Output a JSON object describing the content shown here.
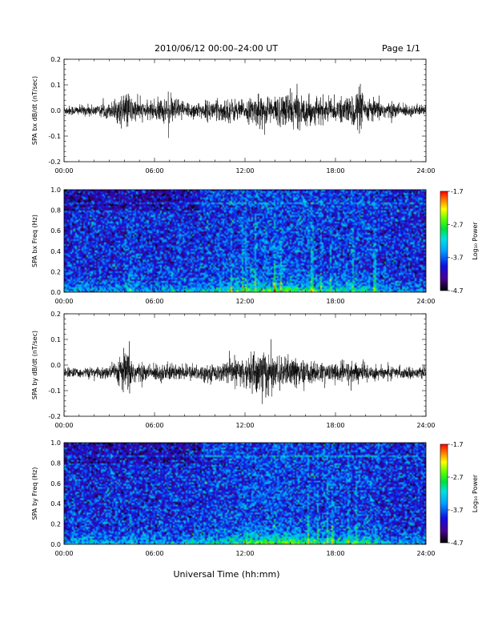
{
  "header": {
    "title": "2010/06/12  00:00–24:00 UT",
    "page": "Page 1/1"
  },
  "xlabel": "Universal Time (hh:mm)",
  "chart_data": [
    {
      "type": "line",
      "ylabel": "SPA bx dB/dt (nT/sec)",
      "xlim": [
        0,
        24
      ],
      "ylim": [
        -0.2,
        0.2
      ],
      "x_ticks": [
        "00:00",
        "06:00",
        "12:00",
        "18:00",
        "24:00"
      ],
      "y_ticks": [
        "-0.2",
        "-0.1",
        "0.0",
        "0.1",
        "0.2"
      ],
      "baseline": 0.0,
      "activity_envelope": [
        [
          0,
          0.02
        ],
        [
          1,
          0.02
        ],
        [
          2,
          0.025
        ],
        [
          3,
          0.03
        ],
        [
          3.8,
          0.06
        ],
        [
          4.2,
          0.08
        ],
        [
          4.6,
          0.05
        ],
        [
          5.5,
          0.03
        ],
        [
          6.3,
          0.05
        ],
        [
          7,
          0.06
        ],
        [
          8,
          0.04
        ],
        [
          9,
          0.035
        ],
        [
          10,
          0.045
        ],
        [
          11,
          0.05
        ],
        [
          12,
          0.04
        ],
        [
          13,
          0.07
        ],
        [
          14,
          0.06
        ],
        [
          15,
          0.08
        ],
        [
          16,
          0.06
        ],
        [
          17,
          0.05
        ],
        [
          18,
          0.04
        ],
        [
          19,
          0.06
        ],
        [
          19.5,
          0.1
        ],
        [
          20,
          0.05
        ],
        [
          21,
          0.04
        ],
        [
          22,
          0.03
        ],
        [
          23,
          0.025
        ],
        [
          24,
          0.02
        ]
      ]
    },
    {
      "type": "heatmap",
      "ylabel": "SPA bx Freq (Hz)",
      "xlim": [
        0,
        24
      ],
      "ylim": [
        0,
        1.0
      ],
      "x_ticks": [
        "00:00",
        "06:00",
        "12:00",
        "18:00",
        "24:00"
      ],
      "y_ticks": [
        "0.0",
        "0.2",
        "0.4",
        "0.6",
        "0.8",
        "1.0"
      ],
      "colorbar_label": "Log₁₀ Power",
      "colorbar_ticks": [
        "-1.7",
        "-2.7",
        "-3.7",
        "-4.7"
      ],
      "colorbar_range": [
        -4.7,
        -1.7
      ]
    },
    {
      "type": "line",
      "ylabel": "SPA by dB/dt (nT/sec)",
      "xlim": [
        0,
        24
      ],
      "ylim": [
        -0.2,
        0.2
      ],
      "x_ticks": [
        "00:00",
        "06:00",
        "12:00",
        "18:00",
        "24:00"
      ],
      "y_ticks": [
        "-0.2",
        "-0.1",
        "0.0",
        "0.1",
        "0.2"
      ],
      "baseline": -0.03,
      "activity_envelope": [
        [
          0,
          0.02
        ],
        [
          2,
          0.02
        ],
        [
          3,
          0.03
        ],
        [
          3.8,
          0.07
        ],
        [
          4.2,
          0.1
        ],
        [
          4.7,
          0.05
        ],
        [
          5.5,
          0.03
        ],
        [
          6.5,
          0.04
        ],
        [
          8,
          0.03
        ],
        [
          10,
          0.035
        ],
        [
          11,
          0.05
        ],
        [
          12,
          0.06
        ],
        [
          12.8,
          0.1
        ],
        [
          13.2,
          0.12
        ],
        [
          14,
          0.06
        ],
        [
          15,
          0.07
        ],
        [
          16,
          0.05
        ],
        [
          17,
          0.04
        ],
        [
          18,
          0.04
        ],
        [
          19,
          0.05
        ],
        [
          20,
          0.04
        ],
        [
          21,
          0.03
        ],
        [
          22,
          0.025
        ],
        [
          24,
          0.02
        ]
      ]
    },
    {
      "type": "heatmap",
      "ylabel": "SPA by Freq (Hz)",
      "xlim": [
        0,
        24
      ],
      "ylim": [
        0,
        1.0
      ],
      "x_ticks": [
        "00:00",
        "06:00",
        "12:00",
        "18:00",
        "24:00"
      ],
      "y_ticks": [
        "0.0",
        "0.2",
        "0.4",
        "0.6",
        "0.8",
        "1.0"
      ],
      "colorbar_label": "Log₁₀ Power",
      "colorbar_ticks": [
        "-1.7",
        "-2.7",
        "-3.7",
        "-4.7"
      ],
      "colorbar_range": [
        -4.7,
        -1.7
      ]
    }
  ]
}
